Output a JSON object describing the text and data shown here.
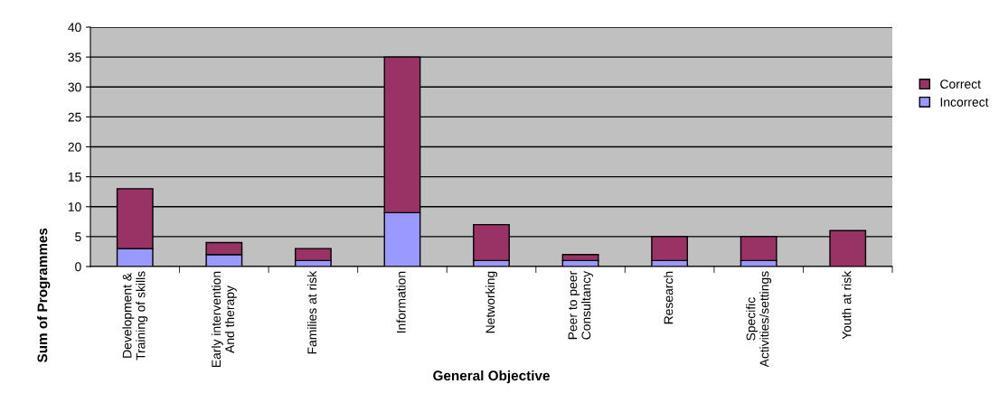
{
  "chart_data": {
    "type": "bar",
    "stacked": true,
    "xlabel": "General Objective",
    "ylabel": "Sum of Programmes",
    "categories": [
      "Development &\nTraining of skills",
      "Early intervention\nAnd therapy",
      "Families at risk",
      "Information",
      "Networking",
      "Peer to peer\nConsultancy",
      "Research",
      "Specific\nActivities/settings",
      "Youth at risk"
    ],
    "series": [
      {
        "name": "Incorrect",
        "color": "#9999ff",
        "values": [
          3,
          2,
          1,
          9,
          1,
          1,
          1,
          1,
          0
        ]
      },
      {
        "name": "Correct",
        "color": "#993366",
        "values": [
          10,
          2,
          2,
          26,
          6,
          1,
          4,
          4,
          6
        ]
      }
    ],
    "ylim": [
      0,
      40
    ],
    "yticks": [
      0,
      5,
      10,
      15,
      20,
      25,
      30,
      35,
      40
    ],
    "grid": "y",
    "legend": "right"
  }
}
